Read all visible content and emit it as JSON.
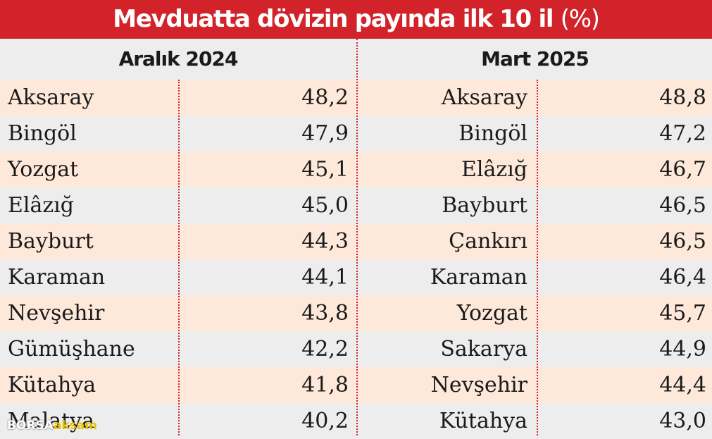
{
  "title": {
    "main": "Mevduatta dövizin payında ilk 10 il",
    "unit": "(%)"
  },
  "colors": {
    "accent": "#d2232a",
    "row_odd": "#fde8da",
    "row_even": "#ededed",
    "header_bg": "#ededed"
  },
  "chart_data": {
    "type": "table",
    "title": "Mevduatta dövizin payında ilk 10 il (%)",
    "tables": [
      {
        "name": "Aralık 2024",
        "rows": [
          {
            "province": "Aksaray",
            "value": "48,2"
          },
          {
            "province": "Bingöl",
            "value": "47,9"
          },
          {
            "province": "Yozgat",
            "value": "45,1"
          },
          {
            "province": "Elâzığ",
            "value": "45,0"
          },
          {
            "province": "Bayburt",
            "value": "44,3"
          },
          {
            "province": "Karaman",
            "value": "44,1"
          },
          {
            "province": "Nevşehir",
            "value": "43,8"
          },
          {
            "province": "Gümüşhane",
            "value": "42,2"
          },
          {
            "province": "Kütahya",
            "value": "41,8"
          },
          {
            "province": "Malatya",
            "value": "40,2"
          }
        ]
      },
      {
        "name": "Mart 2025",
        "rows": [
          {
            "province": "Aksaray",
            "value": "48,8"
          },
          {
            "province": "Bingöl",
            "value": "47,2"
          },
          {
            "province": "Elâzığ",
            "value": "46,7"
          },
          {
            "province": "Bayburt",
            "value": "46,5"
          },
          {
            "province": "Çankırı",
            "value": "46,5"
          },
          {
            "province": "Karaman",
            "value": "46,4"
          },
          {
            "province": "Yozgat",
            "value": "45,7"
          },
          {
            "province": "Sakarya",
            "value": "44,9"
          },
          {
            "province": "Nevşehir",
            "value": "44,4"
          },
          {
            "province": "Kütahya",
            "value": "43,0"
          }
        ]
      }
    ]
  },
  "watermark": {
    "part1": "BORSA",
    "part2": "aksam"
  }
}
